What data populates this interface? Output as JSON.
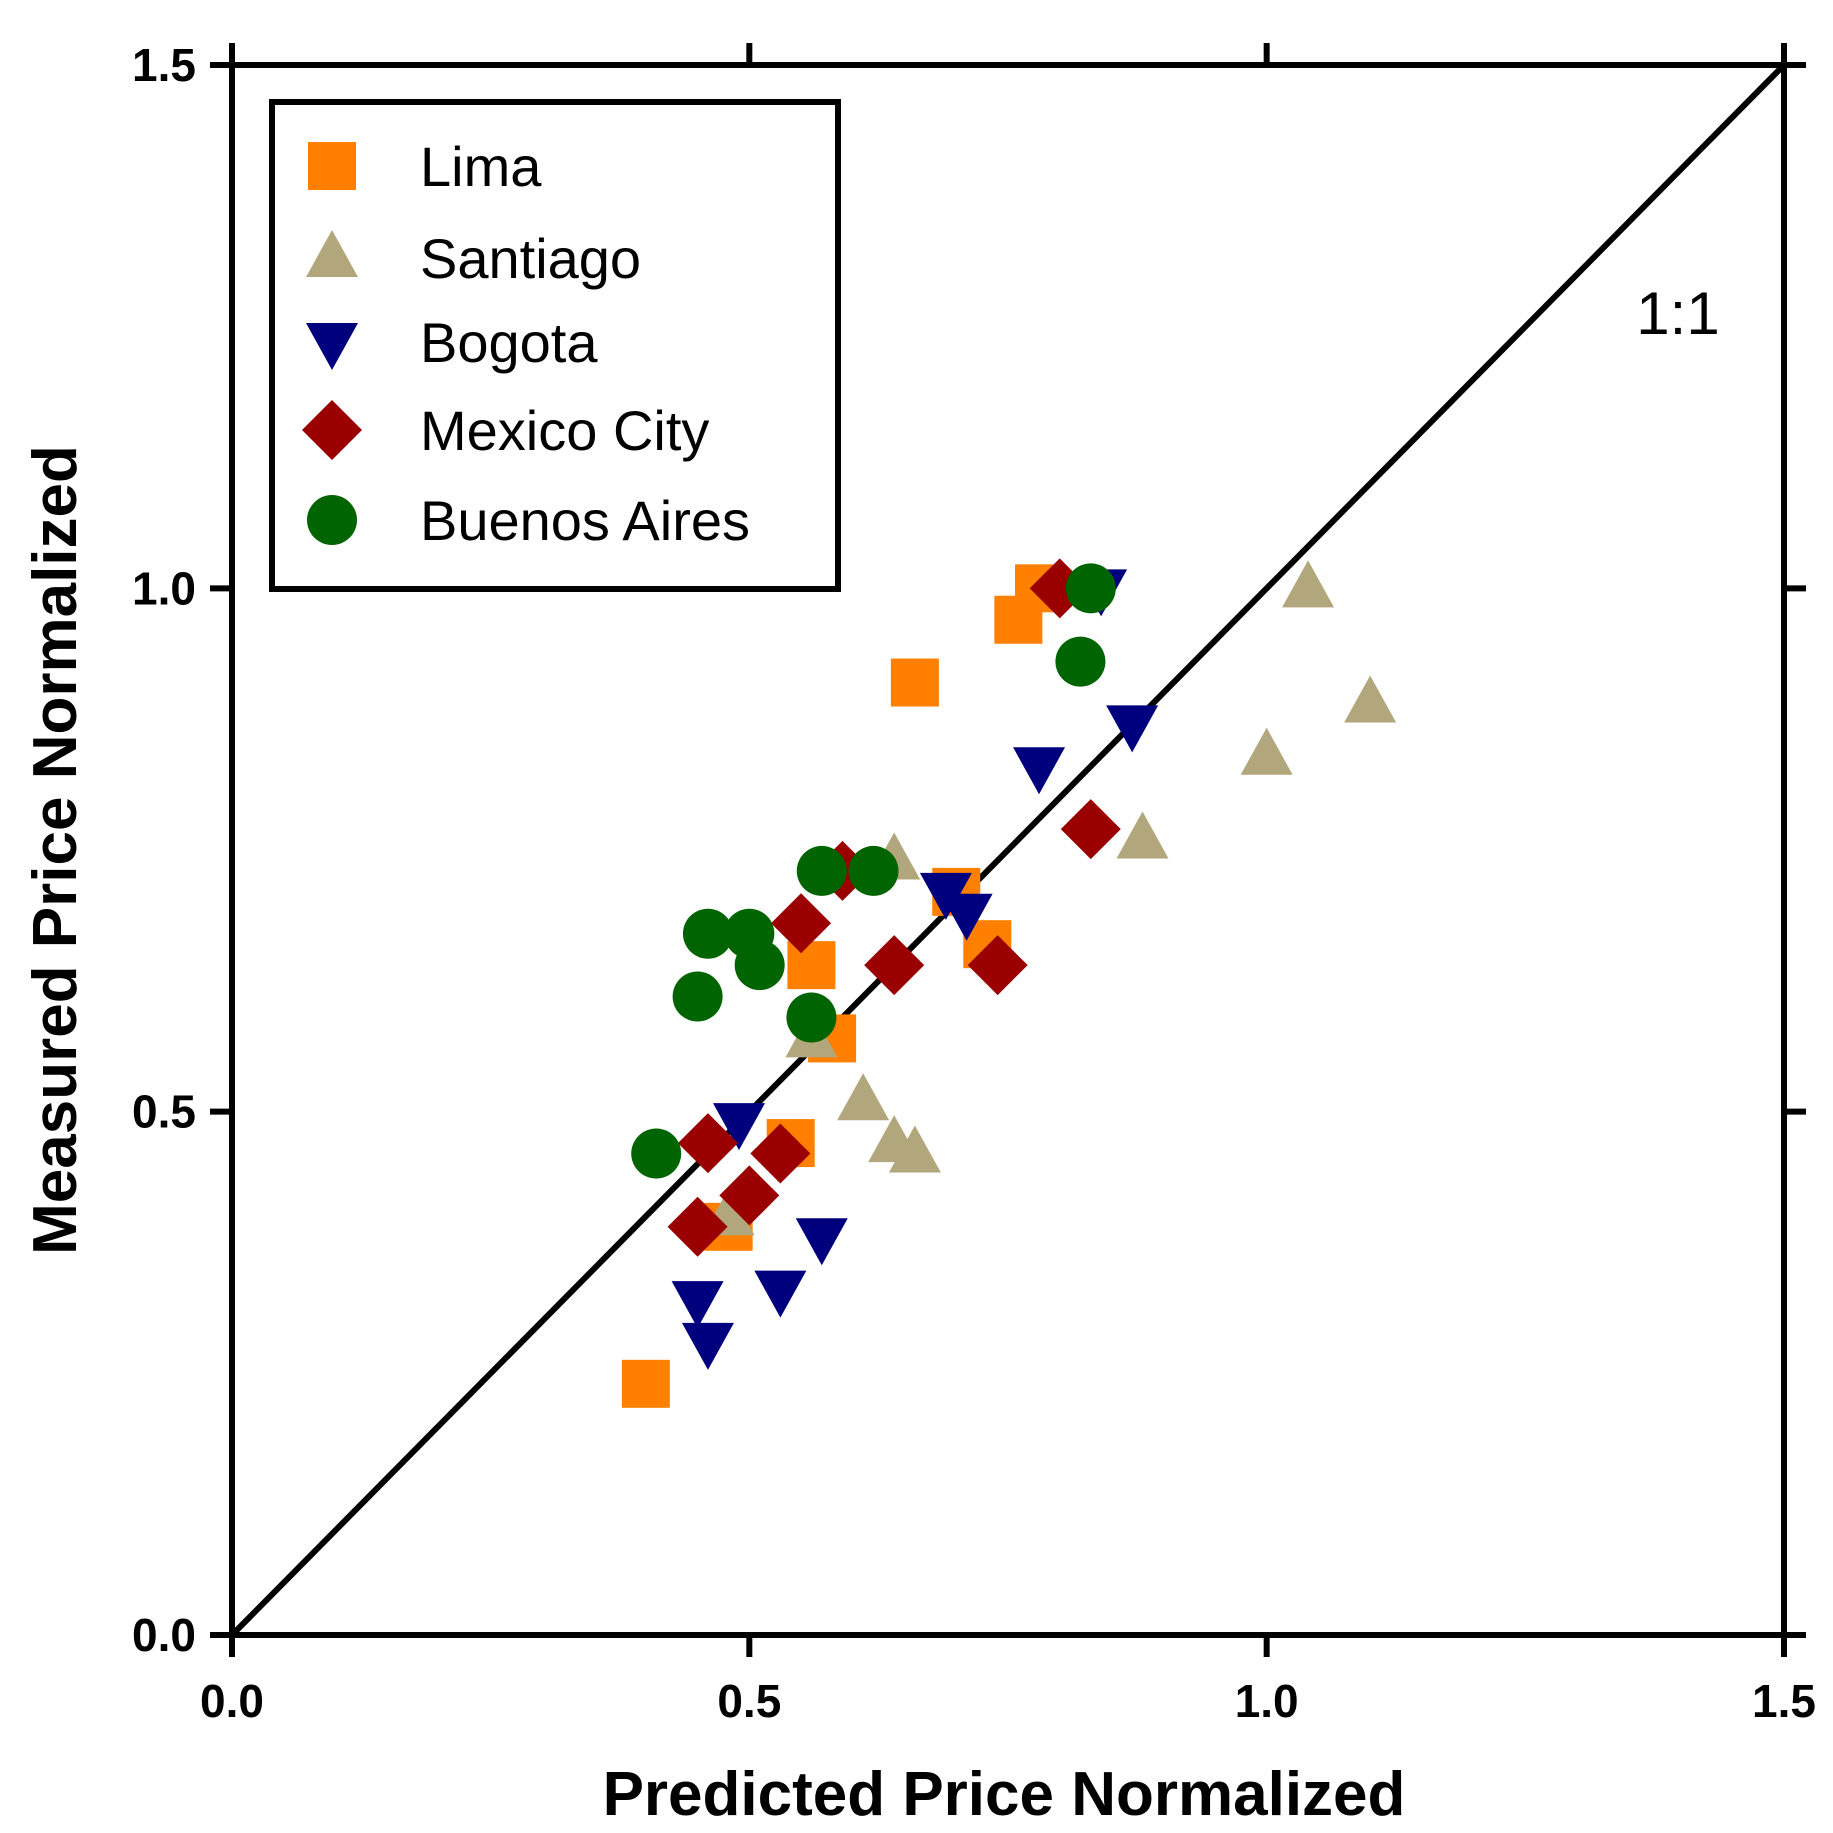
{
  "chart_data": {
    "type": "scatter",
    "title": "",
    "xlabel": "Predicted Price Normalized",
    "ylabel": "Measured Price Normalized",
    "xlim": [
      0.0,
      1.5
    ],
    "ylim": [
      0.0,
      1.5
    ],
    "xticks": [
      "0.0",
      "0.5",
      "1.0",
      "1.5"
    ],
    "yticks": [
      "0.0",
      "0.5",
      "1.0",
      "1.5"
    ],
    "grid": false,
    "legend_position": "top-left",
    "reference_line": {
      "label": "1:1",
      "from": [
        0,
        0
      ],
      "to": [
        1.5,
        1.5
      ]
    },
    "series": [
      {
        "name": "Lima",
        "marker": "square",
        "color": "#FF8000",
        "points": [
          [
            0.4,
            0.24
          ],
          [
            0.48,
            0.39
          ],
          [
            0.54,
            0.47
          ],
          [
            0.58,
            0.57
          ],
          [
            0.56,
            0.64
          ],
          [
            0.7,
            0.71
          ],
          [
            0.73,
            0.66
          ],
          [
            0.66,
            0.91
          ],
          [
            0.76,
            0.97
          ],
          [
            0.78,
            1.0
          ]
        ]
      },
      {
        "name": "Santiago",
        "marker": "triangle-up",
        "color": "#B2A67C",
        "points": [
          [
            0.48,
            0.4
          ],
          [
            0.56,
            0.57
          ],
          [
            0.61,
            0.51
          ],
          [
            0.64,
            0.47
          ],
          [
            0.66,
            0.46
          ],
          [
            0.64,
            0.74
          ],
          [
            0.88,
            0.76
          ],
          [
            1.0,
            0.84
          ],
          [
            1.04,
            1.0
          ],
          [
            1.1,
            0.89
          ]
        ]
      },
      {
        "name": "Bogota",
        "marker": "triangle-down",
        "color": "#00007F",
        "points": [
          [
            0.45,
            0.32
          ],
          [
            0.46,
            0.28
          ],
          [
            0.49,
            0.49
          ],
          [
            0.53,
            0.33
          ],
          [
            0.57,
            0.38
          ],
          [
            0.69,
            0.71
          ],
          [
            0.71,
            0.69
          ],
          [
            0.78,
            0.83
          ],
          [
            0.87,
            0.87
          ],
          [
            0.84,
            1.0
          ]
        ]
      },
      {
        "name": "Mexico City",
        "marker": "diamond",
        "color": "#9B0000",
        "points": [
          [
            0.45,
            0.39
          ],
          [
            0.46,
            0.47
          ],
          [
            0.5,
            0.42
          ],
          [
            0.53,
            0.46
          ],
          [
            0.55,
            0.68
          ],
          [
            0.59,
            0.73
          ],
          [
            0.64,
            0.64
          ],
          [
            0.74,
            0.64
          ],
          [
            0.83,
            0.77
          ],
          [
            0.8,
            1.0
          ]
        ]
      },
      {
        "name": "Buenos Aires",
        "marker": "circle",
        "color": "#006400",
        "points": [
          [
            0.41,
            0.46
          ],
          [
            0.45,
            0.61
          ],
          [
            0.46,
            0.67
          ],
          [
            0.5,
            0.67
          ],
          [
            0.51,
            0.64
          ],
          [
            0.56,
            0.59
          ],
          [
            0.57,
            0.73
          ],
          [
            0.62,
            0.73
          ],
          [
            0.82,
            0.93
          ],
          [
            0.83,
            1.0
          ]
        ]
      }
    ]
  }
}
